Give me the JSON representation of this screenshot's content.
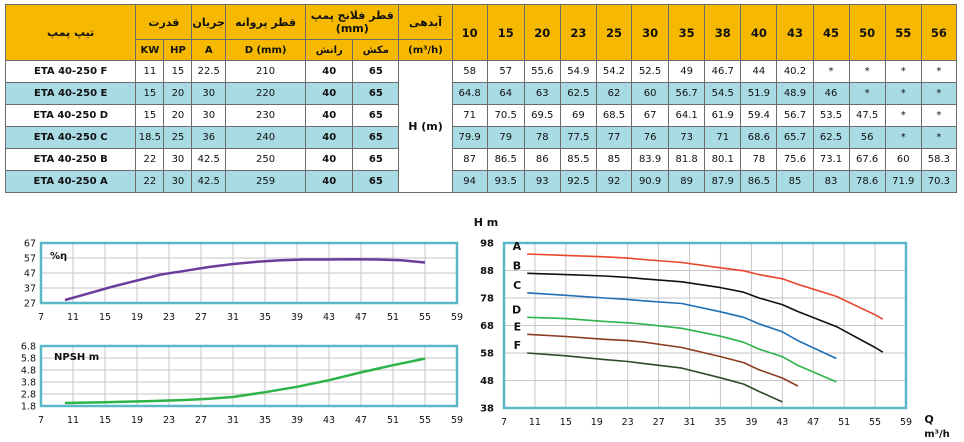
{
  "table": {
    "col_model": "تیپ پمپ",
    "col_power": "قدرت",
    "col_current": "جریان",
    "col_impeller": "قطر پروانه",
    "col_flange": "قطر فلانج پمپ (mm)",
    "col_flow": "آبدهی",
    "flow_unit": "(m³/h)",
    "unit_kw": "KW",
    "unit_hp": "HP",
    "unit_a": "A",
    "unit_d": "D (mm)",
    "flange_discharge": "رانش",
    "flange_suction": "مکش",
    "head_label": "H (m)",
    "q_values": [
      "10",
      "15",
      "20",
      "23",
      "25",
      "30",
      "35",
      "38",
      "40",
      "43",
      "45",
      "50",
      "55",
      "56"
    ],
    "rows": [
      {
        "model": "ETA 40-250 F",
        "kw": "11",
        "hp": "15",
        "a": "22.5",
        "d": "210",
        "discharge": "40",
        "suction": "65",
        "heads": [
          "58",
          "57",
          "55.6",
          "54.9",
          "54.2",
          "52.5",
          "49",
          "46.7",
          "44",
          "40.2",
          "*",
          "*",
          "*",
          "*"
        ]
      },
      {
        "model": "ETA 40-250 E",
        "kw": "15",
        "hp": "20",
        "a": "30",
        "d": "220",
        "discharge": "40",
        "suction": "65",
        "heads": [
          "64.8",
          "64",
          "63",
          "62.5",
          "62",
          "60",
          "56.7",
          "54.5",
          "51.9",
          "48.9",
          "46",
          "*",
          "*",
          "*"
        ]
      },
      {
        "model": "ETA 40-250 D",
        "kw": "15",
        "hp": "20",
        "a": "30",
        "d": "230",
        "discharge": "40",
        "suction": "65",
        "heads": [
          "71",
          "70.5",
          "69.5",
          "69",
          "68.5",
          "67",
          "64.1",
          "61.9",
          "59.4",
          "56.7",
          "53.5",
          "47.5",
          "*",
          "*"
        ]
      },
      {
        "model": "ETA 40-250 C",
        "kw": "18.5",
        "hp": "25",
        "a": "36",
        "d": "240",
        "discharge": "40",
        "suction": "65",
        "heads": [
          "79.9",
          "79",
          "78",
          "77.5",
          "77",
          "76",
          "73",
          "71",
          "68.6",
          "65.7",
          "62.5",
          "56",
          "*",
          "*"
        ]
      },
      {
        "model": "ETA 40-250 B",
        "kw": "22",
        "hp": "30",
        "a": "42.5",
        "d": "250",
        "discharge": "40",
        "suction": "65",
        "heads": [
          "87",
          "86.5",
          "86",
          "85.5",
          "85",
          "83.9",
          "81.8",
          "80.1",
          "78",
          "75.6",
          "73.1",
          "67.6",
          "60",
          "58.3"
        ]
      },
      {
        "model": "ETA 40-250 A",
        "kw": "22",
        "hp": "30",
        "a": "42.5",
        "d": "259",
        "discharge": "40",
        "suction": "65",
        "heads": [
          "94",
          "93.5",
          "93",
          "92.5",
          "92",
          "90.9",
          "89",
          "87.9",
          "86.5",
          "85",
          "83",
          "78.6",
          "71.9",
          "70.3"
        ]
      }
    ]
  },
  "colors": {
    "header": "#f7b900",
    "alt_row": "#a9dbe4",
    "frame": "#5bb7c8",
    "grid": "#c6c6c6",
    "eff": "#6a3d9a",
    "npsh": "#2db34a",
    "A": "#e8452b",
    "B": "#111111",
    "C": "#1f6fb5",
    "D": "#2db34a",
    "E": "#8b3a1c",
    "F": "#2f4a2a"
  },
  "chart_data": [
    {
      "type": "line",
      "ylabel": "%η",
      "x_ticks": [
        "7",
        "11",
        "15",
        "19",
        "23",
        "27",
        "31",
        "35",
        "39",
        "43",
        "47",
        "51",
        "55",
        "59"
      ],
      "y_ticks": [
        "67",
        "57",
        "47",
        "37",
        "27"
      ],
      "xlim": [
        7,
        59
      ],
      "ylim": [
        27,
        67
      ],
      "series": [
        {
          "x": [
            10,
            13,
            16,
            19,
            22,
            25,
            28,
            31,
            34,
            37,
            40,
            43,
            46,
            49,
            52,
            55
          ],
          "values": [
            29,
            33.5,
            38,
            42,
            46,
            48.5,
            51,
            53,
            54.5,
            55.5,
            56,
            56,
            56.2,
            56,
            55.5,
            54
          ]
        }
      ]
    },
    {
      "type": "line",
      "ylabel": "NPSH m",
      "x_ticks": [
        "7",
        "11",
        "15",
        "19",
        "23",
        "27",
        "31",
        "35",
        "39",
        "43",
        "47",
        "51",
        "55",
        "59"
      ],
      "y_ticks": [
        "6.8",
        "5.8",
        "4.8",
        "3.8",
        "2.8",
        "1.8"
      ],
      "xlim": [
        7,
        59
      ],
      "ylim": [
        1.8,
        6.8
      ],
      "series": [
        {
          "x": [
            10,
            15,
            20,
            25,
            28,
            31,
            35,
            39,
            43,
            47,
            51,
            55
          ],
          "values": [
            2.05,
            2.12,
            2.2,
            2.3,
            2.4,
            2.55,
            2.95,
            3.4,
            3.95,
            4.6,
            5.2,
            5.75
          ]
        }
      ]
    },
    {
      "type": "line",
      "title": "H m",
      "xlabel": "Q m³/h",
      "x_ticks": [
        "7",
        "11",
        "15",
        "19",
        "23",
        "27",
        "31",
        "35",
        "39",
        "43",
        "47",
        "51",
        "55",
        "59"
      ],
      "y_ticks": [
        "98",
        "88",
        "78",
        "68",
        "58",
        "48",
        "38"
      ],
      "xlim": [
        7,
        59
      ],
      "ylim": [
        38,
        98
      ],
      "series": [
        {
          "name": "A",
          "x": [
            10,
            15,
            20,
            23,
            25,
            30,
            35,
            38,
            40,
            43,
            45,
            50,
            55,
            56
          ],
          "values": [
            94,
            93.5,
            93,
            92.5,
            92,
            90.9,
            89,
            87.9,
            86.5,
            85,
            83,
            78.6,
            71.9,
            70.3
          ]
        },
        {
          "name": "B",
          "x": [
            10,
            15,
            20,
            23,
            25,
            30,
            35,
            38,
            40,
            43,
            45,
            50,
            55,
            56
          ],
          "values": [
            87,
            86.5,
            86,
            85.5,
            85,
            83.9,
            81.8,
            80.1,
            78,
            75.6,
            73.1,
            67.6,
            60,
            58.3
          ]
        },
        {
          "name": "C",
          "x": [
            10,
            15,
            20,
            23,
            25,
            30,
            35,
            38,
            40,
            43,
            45,
            50
          ],
          "values": [
            79.9,
            79,
            78,
            77.5,
            77,
            76,
            73,
            71,
            68.6,
            65.7,
            62.5,
            56
          ]
        },
        {
          "name": "D",
          "x": [
            10,
            15,
            20,
            23,
            25,
            30,
            35,
            38,
            40,
            43,
            45,
            50
          ],
          "values": [
            71,
            70.5,
            69.5,
            69,
            68.5,
            67,
            64.1,
            61.9,
            59.4,
            56.7,
            53.5,
            47.5
          ]
        },
        {
          "name": "E",
          "x": [
            10,
            15,
            20,
            23,
            25,
            30,
            35,
            38,
            40,
            43,
            45
          ],
          "values": [
            64.8,
            64,
            63,
            62.5,
            62,
            60,
            56.7,
            54.5,
            51.9,
            48.9,
            46
          ]
        },
        {
          "name": "F",
          "x": [
            10,
            15,
            20,
            23,
            25,
            30,
            35,
            38,
            40,
            43
          ],
          "values": [
            58,
            57,
            55.6,
            54.9,
            54.2,
            52.5,
            49,
            46.7,
            44,
            40.2
          ]
        }
      ]
    }
  ]
}
